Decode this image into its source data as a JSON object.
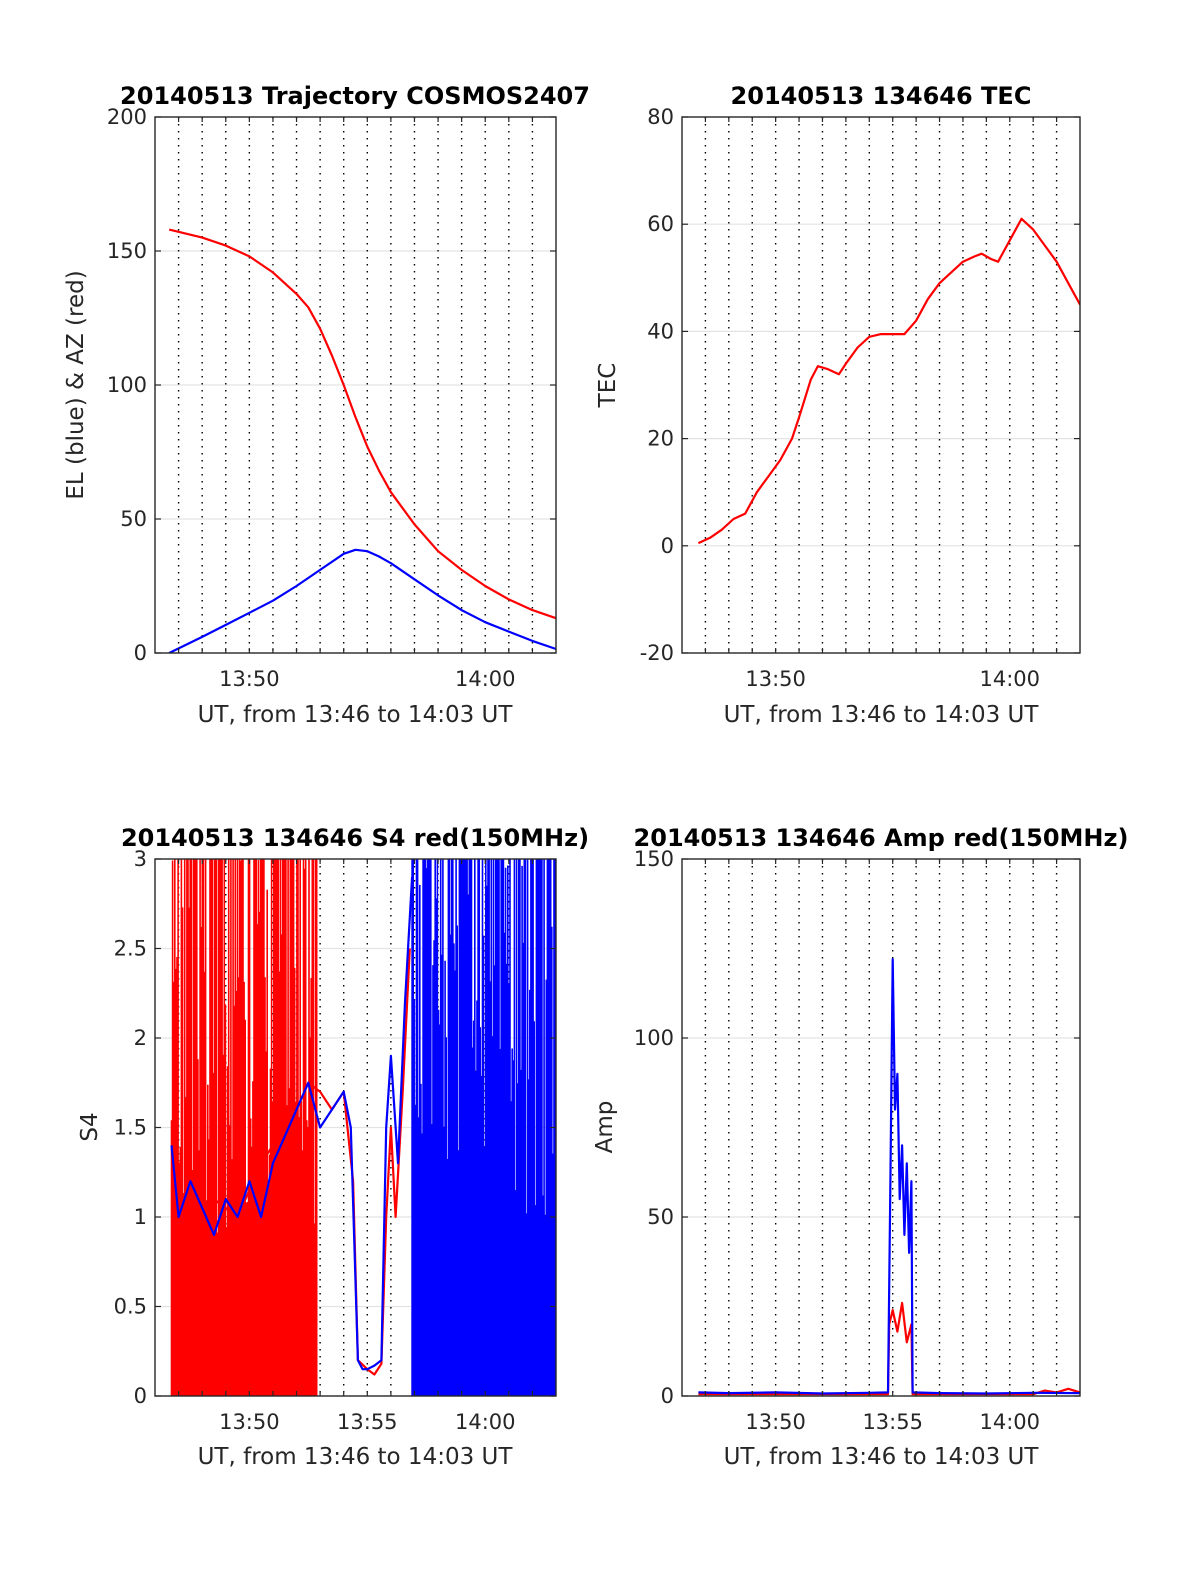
{
  "chart_data": [
    {
      "id": "traj",
      "type": "line",
      "title": "20140513 Trajectory COSMOS2407",
      "xlabel": "UT, from 13:46 to 14:03 UT",
      "ylabel": "EL (blue) & AZ (red)",
      "x_unit": "minutes after 13:46 UT",
      "xlim": [
        0,
        17
      ],
      "ylim": [
        0,
        200
      ],
      "grid": {
        "x": "dotted",
        "y": "solid-light"
      },
      "yticks": [
        "0",
        "50",
        "100",
        "150",
        "200"
      ],
      "xticks": [
        {
          "x": 4,
          "label": "13:50"
        },
        {
          "x": 14,
          "label": "14:00"
        }
      ],
      "series": [
        {
          "color": "#ff0000",
          "x": [
            0.6,
            2,
            3,
            4,
            5,
            6,
            6.5,
            7,
            7.5,
            8,
            8.5,
            9,
            9.5,
            10,
            11,
            12,
            13,
            14,
            15,
            16,
            17
          ],
          "y": [
            158,
            155,
            152,
            148,
            142,
            134,
            129,
            121,
            111,
            100,
            88,
            77,
            68,
            60,
            48,
            38,
            31,
            25,
            20,
            16,
            13
          ]
        },
        {
          "color": "#0000ff",
          "x": [
            0.6,
            2,
            3,
            4,
            5,
            6,
            7,
            8,
            8.5,
            9,
            9.5,
            10,
            11,
            12,
            13,
            14,
            15,
            16,
            17
          ],
          "y": [
            0,
            6,
            10.5,
            15,
            19.5,
            25,
            31,
            37,
            38.5,
            38,
            36,
            33.5,
            27.5,
            21.5,
            16,
            11.5,
            8,
            4.5,
            1.5
          ]
        }
      ]
    },
    {
      "id": "tec",
      "type": "line",
      "title": "20140513 134646 TEC",
      "xlabel": "UT, from 13:46 to 14:03 UT",
      "ylabel": "TEC",
      "x_unit": "minutes after 13:46 UT",
      "xlim": [
        0,
        17
      ],
      "ylim": [
        -20,
        80
      ],
      "grid": {
        "x": "dotted",
        "y": "solid-light"
      },
      "yticks": [
        "-20",
        "0",
        "20",
        "40",
        "60",
        "80"
      ],
      "xticks": [
        {
          "x": 4,
          "label": "13:50"
        },
        {
          "x": 14,
          "label": "14:00"
        }
      ],
      "series": [
        {
          "color": "#ff0000",
          "x": [
            0.7,
            1.2,
            1.7,
            2.2,
            2.7,
            3.2,
            3.7,
            4.2,
            4.7,
            5.0,
            5.5,
            5.8,
            6.2,
            6.7,
            7.0,
            7.5,
            8.0,
            8.5,
            9.0,
            9.5,
            10.0,
            10.5,
            11.0,
            11.5,
            12.0,
            12.5,
            12.8,
            13.2,
            13.5,
            14.0,
            14.5,
            15.0,
            15.5,
            16.0,
            16.5,
            17.0
          ],
          "y": [
            0.5,
            1.5,
            3,
            5,
            6,
            10,
            13,
            16,
            20,
            24,
            31,
            33.5,
            33,
            32,
            34,
            37,
            39,
            39.5,
            39.5,
            39.5,
            42,
            46,
            49,
            51,
            53,
            54,
            54.5,
            53.5,
            53,
            57,
            61,
            59,
            56,
            53,
            49,
            45
          ]
        }
      ]
    },
    {
      "id": "s4",
      "type": "line",
      "title": "20140513 134646 S4 red(150MHz)",
      "xlabel": "UT, from 13:46 to 14:03 UT",
      "ylabel": "S4",
      "x_unit": "minutes after 13:46 UT",
      "xlim": [
        0,
        17
      ],
      "ylim": [
        0,
        3
      ],
      "grid": {
        "x": "dotted",
        "y": "solid-light"
      },
      "yticks": [
        "0",
        "0.5",
        "1",
        "1.5",
        "2",
        "2.5",
        "3"
      ],
      "xticks": [
        {
          "x": 4,
          "label": "13:50"
        },
        {
          "x": 9,
          "label": "13:55"
        },
        {
          "x": 14,
          "label": "14:00"
        }
      ],
      "noise_regions": [
        {
          "color": "#ff0000",
          "x": [
            0.7,
            6.9
          ],
          "y": [
            0,
            3
          ]
        },
        {
          "color": "#0000ff",
          "x": [
            10.9,
            17
          ],
          "y": [
            0,
            3
          ]
        }
      ],
      "series": [
        {
          "color": "#ff0000",
          "x": [
            0.7,
            1.5,
            2.5,
            3.5,
            4.5,
            5.5,
            6.0,
            6.5,
            7.0,
            7.5,
            8.0,
            8.4,
            8.6,
            9.0,
            9.3,
            9.6,
            9.8,
            10.0,
            10.2,
            10.5,
            10.8
          ],
          "y": [
            1.1,
            1.0,
            1.1,
            1.0,
            1.3,
            1.5,
            1.6,
            1.75,
            1.7,
            1.6,
            1.7,
            1.2,
            0.2,
            0.15,
            0.12,
            0.18,
            1.0,
            1.5,
            1.0,
            1.7,
            2.5
          ]
        },
        {
          "color": "#0000ff",
          "x": [
            0.7,
            1.0,
            1.5,
            2.0,
            2.5,
            3.0,
            3.5,
            4.0,
            4.5,
            5.0,
            5.5,
            6.0,
            6.5,
            7.0,
            7.5,
            8.0,
            8.3,
            8.6,
            8.8,
            9.0,
            9.3,
            9.6,
            9.8,
            10.0,
            10.3,
            10.6,
            10.9
          ],
          "y": [
            1.4,
            1.0,
            1.2,
            1.05,
            0.9,
            1.1,
            1.0,
            1.2,
            1.0,
            1.3,
            1.45,
            1.6,
            1.75,
            1.5,
            1.6,
            1.7,
            1.5,
            0.2,
            0.15,
            0.15,
            0.17,
            0.2,
            1.5,
            1.9,
            1.3,
            2.2,
            2.9
          ]
        }
      ]
    },
    {
      "id": "amp",
      "type": "line",
      "title": "20140513 134646 Amp red(150MHz)",
      "xlabel": "UT, from 13:46 to 14:03 UT",
      "ylabel": "Amp",
      "x_unit": "minutes after 13:46 UT",
      "xlim": [
        0,
        17
      ],
      "ylim": [
        0,
        150
      ],
      "grid": {
        "x": "dotted",
        "y": "solid-light"
      },
      "yticks": [
        "0",
        "50",
        "100",
        "150"
      ],
      "xticks": [
        {
          "x": 4,
          "label": "13:50"
        },
        {
          "x": 9,
          "label": "13:55"
        },
        {
          "x": 14,
          "label": "14:00"
        }
      ],
      "series": [
        {
          "color": "#ff0000",
          "x": [
            0.7,
            8.8,
            8.85,
            9.0,
            9.2,
            9.4,
            9.6,
            9.8,
            9.85,
            15.0,
            15.5,
            16.0,
            16.5,
            17.0
          ],
          "y": [
            0.5,
            0.5,
            20,
            24,
            18,
            26,
            15,
            20,
            0.5,
            0.5,
            1.5,
            1.0,
            2.0,
            1.0
          ]
        },
        {
          "color": "#0000ff",
          "x": [
            0.7,
            2.0,
            4.0,
            6.0,
            8.0,
            8.8,
            8.9,
            9.0,
            9.1,
            9.2,
            9.3,
            9.4,
            9.5,
            9.6,
            9.7,
            9.8,
            9.85,
            11.0,
            13.0,
            15.0,
            17.0
          ],
          "y": [
            1.0,
            0.8,
            1.0,
            0.7,
            0.9,
            1.0,
            60,
            122,
            80,
            90,
            55,
            70,
            45,
            65,
            40,
            60,
            1.0,
            0.8,
            0.7,
            0.9,
            0.8
          ]
        }
      ]
    }
  ]
}
